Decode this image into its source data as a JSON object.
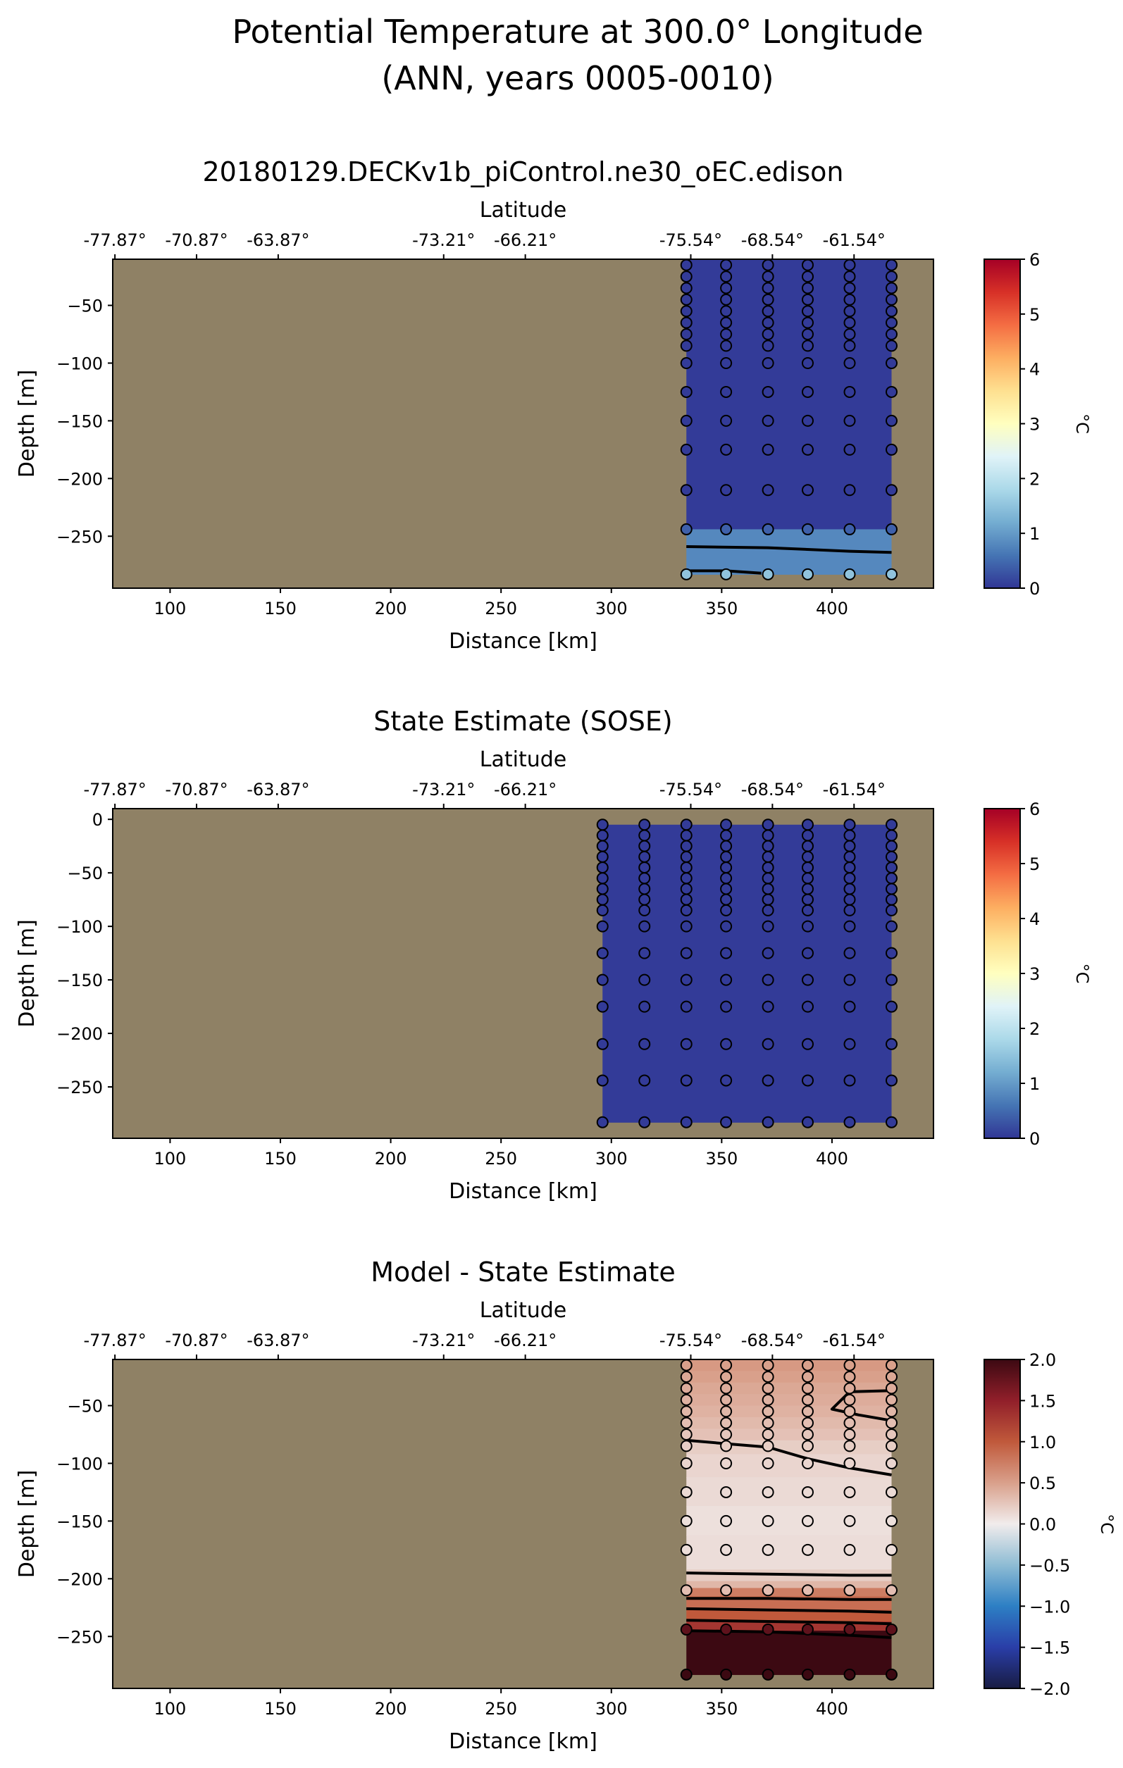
{
  "suptitle": [
    "Potential Temperature at 300.0° Longitude",
    "(ANN, years 0005-0010)"
  ],
  "chart_data": [
    {
      "type": "heatmap",
      "title": "20180129.DECKv1b_piControl.ne30_oEC.edison",
      "xlabel": "Distance [km]",
      "ylabel": "Depth [m]",
      "top_xlabel": "Latitude",
      "top_ticks": [
        {
          "x": 75,
          "label": "-77.87°"
        },
        {
          "x": 112,
          "label": "-70.87°"
        },
        {
          "x": 149,
          "label": "-63.87°"
        },
        {
          "x": 224,
          "label": "-73.21°"
        },
        {
          "x": 261,
          "label": "-66.21°"
        },
        {
          "x": 336,
          "label": "-75.54°"
        },
        {
          "x": 373,
          "label": "-68.54°"
        },
        {
          "x": 410,
          "label": "-61.54°"
        }
      ],
      "xlim": [
        74,
        446
      ],
      "ylim": [
        -295,
        -10
      ],
      "xticks": [
        100,
        150,
        200,
        250,
        300,
        350,
        400
      ],
      "yticks": [
        -50,
        -100,
        -150,
        -200,
        -250
      ],
      "land_color": "#8f8165",
      "colorbar": {
        "label": "°C",
        "min": 0,
        "max": 6,
        "ticks": [
          0,
          1,
          2,
          3,
          4,
          5,
          6
        ],
        "colormap": "RdYlBu_r"
      },
      "section": {
        "x_start": 334,
        "x_end": 427,
        "depth_top": -10,
        "layers": [
          {
            "to": -244,
            "value": 0.05
          },
          {
            "to": -283,
            "value": 0.8
          }
        ]
      },
      "point_x": [
        334,
        352,
        371,
        389,
        408,
        427
      ],
      "point_depths": [
        -15,
        -25,
        -35,
        -45,
        -55,
        -65,
        -75,
        -85,
        -100,
        -125,
        -150,
        -175,
        -210,
        -244,
        -283
      ],
      "point_values": [
        0.05,
        0.05,
        0.05,
        0.05,
        0.05,
        0.05,
        0.05,
        0.05,
        0.05,
        0.05,
        0.05,
        0.05,
        0.05,
        0.4,
        1.5
      ],
      "contours": [
        [
          [
            334,
            -259
          ],
          [
            371,
            -260
          ],
          [
            408,
            -263
          ],
          [
            427,
            -264
          ]
        ],
        [
          [
            334,
            -280
          ],
          [
            352,
            -280
          ],
          [
            368,
            -282
          ]
        ]
      ]
    },
    {
      "type": "heatmap",
      "title": "State Estimate (SOSE)",
      "xlabel": "Distance [km]",
      "ylabel": "Depth [m]",
      "top_xlabel": "Latitude",
      "top_ticks": [
        {
          "x": 75,
          "label": "-77.87°"
        },
        {
          "x": 112,
          "label": "-70.87°"
        },
        {
          "x": 149,
          "label": "-63.87°"
        },
        {
          "x": 224,
          "label": "-73.21°"
        },
        {
          "x": 261,
          "label": "-66.21°"
        },
        {
          "x": 336,
          "label": "-75.54°"
        },
        {
          "x": 373,
          "label": "-68.54°"
        },
        {
          "x": 410,
          "label": "-61.54°"
        }
      ],
      "xlim": [
        74,
        446
      ],
      "ylim": [
        -298,
        10
      ],
      "xticks": [
        100,
        150,
        200,
        250,
        300,
        350,
        400
      ],
      "yticks": [
        0,
        -50,
        -100,
        -150,
        -200,
        -250
      ],
      "land_color": "#8f8165",
      "colorbar": {
        "label": "°C",
        "min": 0,
        "max": 6,
        "ticks": [
          0,
          1,
          2,
          3,
          4,
          5,
          6
        ],
        "colormap": "RdYlBu_r"
      },
      "section": {
        "x_start": 296,
        "x_end": 427,
        "depth_top": -5,
        "layers": [
          {
            "to": -283,
            "value": 0.05
          }
        ]
      },
      "point_x": [
        296,
        315,
        334,
        352,
        371,
        389,
        408,
        427
      ],
      "point_depths": [
        -5,
        -15,
        -25,
        -35,
        -45,
        -55,
        -65,
        -75,
        -85,
        -100,
        -125,
        -150,
        -175,
        -210,
        -244,
        -283
      ],
      "point_values": [
        0.05,
        0.05,
        0.05,
        0.05,
        0.05,
        0.05,
        0.05,
        0.05,
        0.05,
        0.05,
        0.05,
        0.05,
        0.05,
        0.05,
        0.05,
        0.05
      ],
      "contours": []
    },
    {
      "type": "heatmap",
      "title": "Model - State Estimate",
      "xlabel": "Distance [km]",
      "ylabel": "Depth [m]",
      "top_xlabel": "Latitude",
      "top_ticks": [
        {
          "x": 75,
          "label": "-77.87°"
        },
        {
          "x": 112,
          "label": "-70.87°"
        },
        {
          "x": 149,
          "label": "-63.87°"
        },
        {
          "x": 224,
          "label": "-73.21°"
        },
        {
          "x": 261,
          "label": "-66.21°"
        },
        {
          "x": 336,
          "label": "-75.54°"
        },
        {
          "x": 373,
          "label": "-68.54°"
        },
        {
          "x": 410,
          "label": "-61.54°"
        }
      ],
      "xlim": [
        74,
        446
      ],
      "ylim": [
        -295,
        -10
      ],
      "xticks": [
        100,
        150,
        200,
        250,
        300,
        350,
        400
      ],
      "yticks": [
        -50,
        -100,
        -150,
        -200,
        -250
      ],
      "land_color": "#8f8165",
      "colorbar": {
        "label": "°C",
        "min": -2.0,
        "max": 2.0,
        "ticks": [
          -2.0,
          -1.5,
          -1.0,
          -0.5,
          0.0,
          0.5,
          1.0,
          1.5,
          2.0
        ],
        "tick_labels": [
          "−2.0",
          "−1.5",
          "−1.0",
          "−0.5",
          "0.0",
          "0.5",
          "1.0",
          "1.5",
          "2.0"
        ],
        "colormap": "RdBu_r"
      },
      "section": {
        "x_start": 334,
        "x_end": 427,
        "depth_top": -10,
        "layers": [
          {
            "to": -20,
            "value": 0.55
          },
          {
            "to": -30,
            "value": 0.5
          },
          {
            "to": -40,
            "value": 0.45
          },
          {
            "to": -50,
            "value": 0.42
          },
          {
            "to": -60,
            "value": 0.38
          },
          {
            "to": -70,
            "value": 0.33
          },
          {
            "to": -80,
            "value": 0.28
          },
          {
            "to": -92,
            "value": 0.2
          },
          {
            "to": -112,
            "value": 0.15
          },
          {
            "to": -137,
            "value": 0.12
          },
          {
            "to": -162,
            "value": 0.08
          },
          {
            "to": -192,
            "value": 0.1
          },
          {
            "to": -202,
            "value": 0.2
          },
          {
            "to": -208,
            "value": 0.35
          },
          {
            "to": -215,
            "value": 0.75
          },
          {
            "to": -227,
            "value": 0.85
          },
          {
            "to": -237,
            "value": 1.0
          },
          {
            "to": -245,
            "value": 1.3
          },
          {
            "to": -283,
            "value": 2.0
          }
        ]
      },
      "point_x": [
        334,
        352,
        371,
        389,
        408,
        427
      ],
      "point_depths": [
        -15,
        -25,
        -35,
        -45,
        -55,
        -65,
        -75,
        -85,
        -100,
        -125,
        -150,
        -175,
        -210,
        -244,
        -283
      ],
      "point_values": [
        0.5,
        0.45,
        0.42,
        0.38,
        0.35,
        0.3,
        0.25,
        0.2,
        0.15,
        0.12,
        0.08,
        0.1,
        0.3,
        1.8,
        2.0
      ],
      "contours": [
        [
          [
            334,
            -80
          ],
          [
            352,
            -83
          ],
          [
            371,
            -86
          ],
          [
            389,
            -96
          ],
          [
            408,
            -104
          ],
          [
            427,
            -110
          ]
        ],
        [
          [
            408,
            -38
          ],
          [
            427,
            -37
          ]
        ],
        [
          [
            408,
            -38
          ],
          [
            400,
            -53
          ],
          [
            412,
            -58
          ],
          [
            427,
            -63
          ]
        ],
        [
          [
            334,
            -195
          ],
          [
            371,
            -196
          ],
          [
            408,
            -197
          ],
          [
            427,
            -197
          ]
        ],
        [
          [
            334,
            -217
          ],
          [
            371,
            -217
          ],
          [
            408,
            -218
          ],
          [
            427,
            -218
          ]
        ],
        [
          [
            334,
            -226
          ],
          [
            371,
            -227
          ],
          [
            408,
            -228
          ],
          [
            427,
            -229
          ]
        ],
        [
          [
            334,
            -236
          ],
          [
            371,
            -237
          ],
          [
            408,
            -238
          ],
          [
            427,
            -239
          ]
        ],
        [
          [
            334,
            -245
          ],
          [
            371,
            -246
          ],
          [
            408,
            -249
          ],
          [
            427,
            -251
          ]
        ]
      ]
    }
  ]
}
